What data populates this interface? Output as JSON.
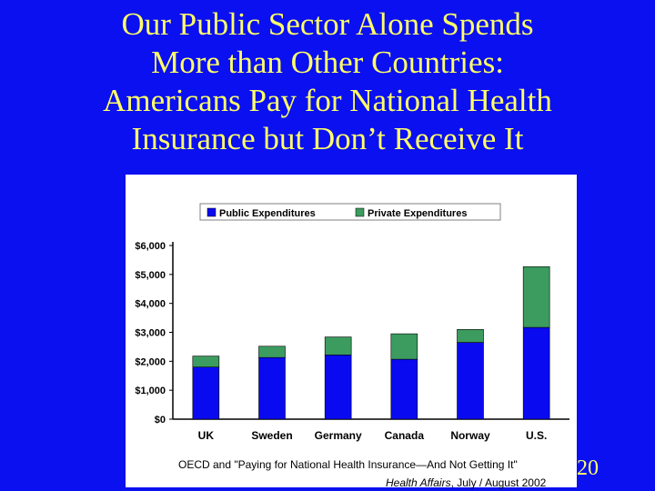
{
  "slide": {
    "title_lines": [
      "Our Public Sector Alone Spends",
      "More than Other Countries:",
      "Americans Pay for National Health",
      "Insurance but Don’t Receive It"
    ],
    "slide_number": "20",
    "source_line1": "OECD and \"Paying for National Health Insurance—And Not Getting It\"",
    "source_journal": "Health Affairs",
    "source_date": ", July / August 2002"
  },
  "colors": {
    "background": "#0a10f0",
    "title": "#ffff66",
    "public": "#0a0af0",
    "private": "#3c9b5f"
  },
  "chart_data": {
    "type": "bar",
    "stacked": true,
    "categories": [
      "UK",
      "Sweden",
      "Germany",
      "Canada",
      "Norway",
      "U.S."
    ],
    "series": [
      {
        "name": "Public Expenditures",
        "values": [
          1800,
          2130,
          2220,
          2070,
          2650,
          3170
        ]
      },
      {
        "name": "Private Expenditures",
        "values": [
          380,
          390,
          620,
          880,
          450,
          2100
        ]
      }
    ],
    "yticks": [
      "$0",
      "$1,000",
      "$2,000",
      "$3,000",
      "$4,000",
      "$5,000",
      "$6,000"
    ],
    "ylim": [
      0,
      6000
    ],
    "legend_position": "top",
    "grid": false
  }
}
